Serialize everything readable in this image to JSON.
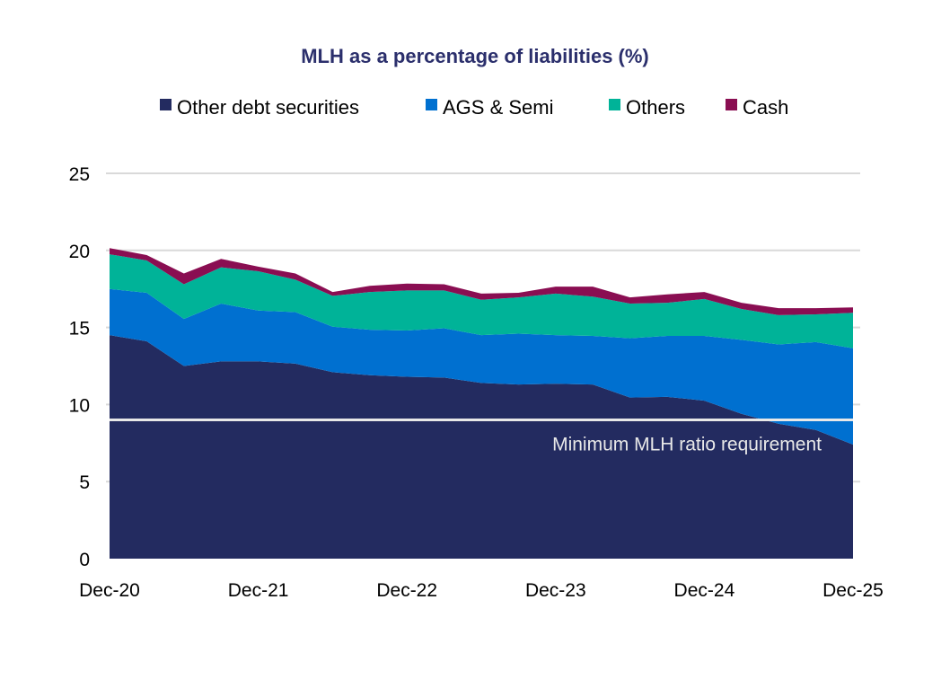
{
  "chart_data": {
    "type": "area",
    "stacked": true,
    "title": "MLH as a percentage of liabilities (%)",
    "xlabel": "",
    "ylabel": "",
    "ylim": [
      0,
      25
    ],
    "yticks": [
      "0",
      "5",
      "10",
      "15",
      "20",
      "25"
    ],
    "xtick_labels": [
      "Dec-20",
      "Dec-21",
      "Dec-22",
      "Dec-23",
      "Dec-24",
      "Dec-25"
    ],
    "x": [
      "Dec-20",
      "Mar-21",
      "Jun-21",
      "Sep-21",
      "Dec-21",
      "Mar-22",
      "Jun-22",
      "Sep-22",
      "Dec-22",
      "Mar-23",
      "Jun-23",
      "Sep-23",
      "Dec-23",
      "Mar-24",
      "Jun-24",
      "Sep-24",
      "Dec-24",
      "Mar-25",
      "Jun-25",
      "Sep-25",
      "Dec-25"
    ],
    "grid": true,
    "legend_position": "top",
    "series": [
      {
        "name": "Other debt securities",
        "color": "#232B60",
        "values": [
          14.5,
          14.1,
          12.5,
          12.8,
          12.8,
          12.65,
          12.1,
          11.9,
          11.8,
          11.75,
          11.4,
          11.3,
          11.35,
          11.3,
          10.45,
          10.5,
          10.25,
          9.4,
          8.75,
          8.35,
          7.4
        ]
      },
      {
        "name": "AGS & Semi",
        "color": "#0070D0",
        "values": [
          3.0,
          3.15,
          3.05,
          3.75,
          3.3,
          3.35,
          2.95,
          2.95,
          3.0,
          3.2,
          3.1,
          3.3,
          3.15,
          3.15,
          3.85,
          3.95,
          4.2,
          4.8,
          5.15,
          5.7,
          6.25
        ]
      },
      {
        "name": "Others",
        "color": "#00B398",
        "values": [
          2.25,
          2.1,
          2.25,
          2.35,
          2.55,
          2.1,
          2.0,
          2.45,
          2.6,
          2.45,
          2.3,
          2.35,
          2.7,
          2.55,
          2.25,
          2.15,
          2.4,
          2.0,
          1.9,
          1.8,
          2.3
        ]
      },
      {
        "name": "Cash",
        "color": "#8A0E52",
        "values": [
          0.4,
          0.35,
          0.7,
          0.55,
          0.3,
          0.4,
          0.25,
          0.4,
          0.45,
          0.4,
          0.4,
          0.3,
          0.45,
          0.65,
          0.4,
          0.55,
          0.45,
          0.4,
          0.45,
          0.4,
          0.35
        ]
      }
    ],
    "annotations": [
      {
        "text": "Minimum MLH ratio requirement",
        "type": "hline",
        "value": 9,
        "color": "#E8E8E8"
      }
    ]
  }
}
